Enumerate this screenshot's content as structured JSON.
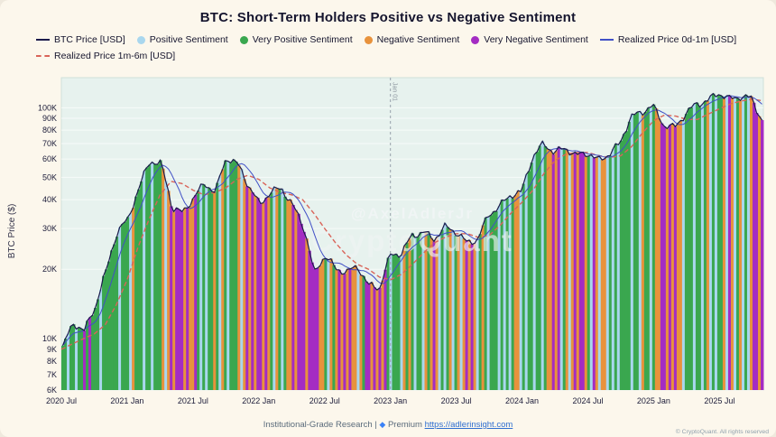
{
  "title": "BTC: Short-Term Holders Positive vs Negative Sentiment",
  "legend": [
    {
      "label": "BTC Price [USD]",
      "type": "line",
      "color": "#1b1b4b"
    },
    {
      "label": "Positive Sentiment",
      "type": "dot",
      "color": "#a9d7ee"
    },
    {
      "label": "Very Positive Sentiment",
      "type": "dot",
      "color": "#3aa74f"
    },
    {
      "label": "Negative Sentiment",
      "type": "dot",
      "color": "#e8923c"
    },
    {
      "label": "Very Negative Sentiment",
      "type": "dot",
      "color": "#a42cc3"
    },
    {
      "label": "Realized Price 0d-1m [USD]",
      "type": "line",
      "color": "#4150c6"
    },
    {
      "label": "Realized Price 1m-6m [USD]",
      "type": "dash",
      "color": "#d96459"
    }
  ],
  "y_axis": {
    "label": "BTC Price ($)",
    "ticks": [
      "100K",
      "90K",
      "80K",
      "70K",
      "60K",
      "50K",
      "40K",
      "30K",
      "20K",
      "10K",
      "9K",
      "8K",
      "7K",
      "6K"
    ]
  },
  "x_axis": {
    "ticks": [
      "2020 Jul",
      "2021 Jan",
      "2021 Jul",
      "2022 Jan",
      "2022 Jul",
      "2023 Jan",
      "2023 Jul",
      "2024 Jan",
      "2024 Jul",
      "2025 Jan",
      "2025 Jul"
    ]
  },
  "annotation": {
    "vline_label": "Jan 01",
    "vline_month_index": 30
  },
  "watermark": {
    "line1": "@AxelAdlerJr",
    "line2": "CryptoQuant"
  },
  "footer": {
    "research": "Institutional-Grade Research |",
    "premium": "Premium",
    "link": "https://adlerinsight.com",
    "copyright": "© CryptoQuant. All rights reserved"
  },
  "chart_data": {
    "type": "bar+line",
    "title": "BTC: Short-Term Holders Positive vs Negative Sentiment",
    "ylabel": "BTC Price ($)",
    "y_scale": "log",
    "ylim_kusd": [
      6,
      135
    ],
    "x_start": "2020-07",
    "x_end": "2025-11",
    "x_tick_step_months": 6,
    "colors": {
      "very_positive": "#3aa74f",
      "positive": "#a9d7ee",
      "negative": "#e8923c",
      "very_negative": "#a42cc3",
      "price": "#1b1b4b",
      "realized_0d1m": "#4150c6",
      "realized_1m6m": "#d96459",
      "plot_bg": "#e7f2ee"
    },
    "price_monthly_kusd": [
      9.2,
      11.7,
      10.8,
      13.8,
      19.7,
      29,
      33,
      45,
      59,
      57,
      37,
      35,
      41,
      47,
      43,
      61,
      57,
      46,
      38,
      43,
      45,
      38,
      31,
      19,
      23,
      20,
      19.5,
      20.5,
      17,
      16.6,
      23,
      23.5,
      28,
      29,
      27,
      30.5,
      29,
      26,
      27,
      34.5,
      37.5,
      42,
      43,
      61,
      70,
      64,
      67,
      62,
      64,
      59,
      63,
      70,
      91,
      96,
      102,
      84,
      82,
      94,
      104,
      107,
      116,
      109,
      112,
      110,
      88
    ],
    "realized_1m6m_monthly_kusd": [
      9,
      9.5,
      10,
      10.5,
      11.5,
      14,
      18,
      25,
      33,
      42,
      48,
      47,
      44,
      42,
      43,
      45,
      49,
      51,
      49,
      45,
      43,
      42,
      40,
      35,
      30,
      26,
      23,
      21,
      20,
      18.5,
      18,
      19,
      21,
      23.5,
      26,
      27.5,
      28.5,
      28.5,
      27.5,
      28,
      31,
      35,
      39,
      44,
      52,
      59,
      63,
      64,
      64,
      62,
      61,
      62,
      68,
      78,
      88,
      93,
      92,
      89,
      89,
      94,
      99,
      104,
      107,
      109,
      107
    ],
    "realized_0d1m_note": "closely tracks BTC price (rendered as trailing average of price)",
    "sentiment_bars": {
      "encoding": {
        "V": "very_positive",
        "P": "positive",
        "N": "negative",
        "X": "very_negative"
      },
      "pattern": "VVPVVPVVXVXVVVPVVVVVVPVVVPNVVVPVVPVVVNPNXNXXXNXNNXVPVPVVNVPNVPVVVNPNXNXNXXNXNVPNVPVNNXNXXXNXXXXNNVPNVNXNXNXNNPNVXXNXNXNXVPVVVPNVNVPVVPNVNXNPVPVNPVNPNXNXNPVNVPVVVPVPVPVNNPVPVVPVVPVNNXNXPVNPNXNXXNVPXNPNNPVPVPVVVVPVVPNVVPVNNXXNXNXNNPVVVPVVPVNPVPVVNPXNPVNPVPNXXNX"
    }
  }
}
